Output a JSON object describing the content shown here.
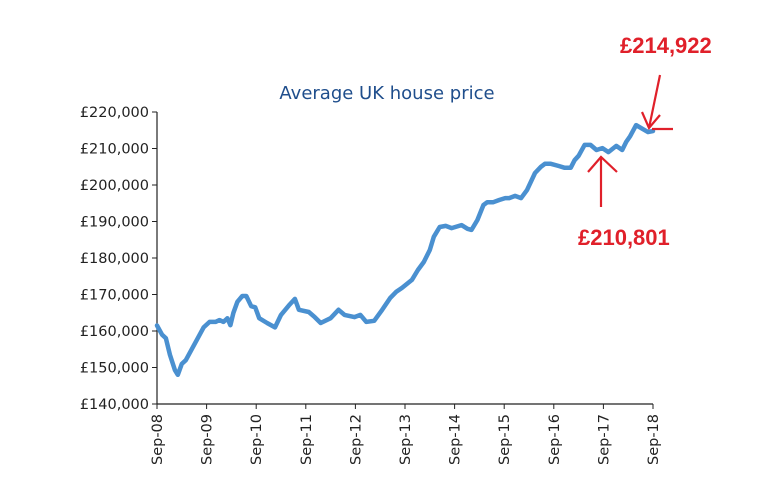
{
  "chart_data": {
    "type": "line",
    "title": "Average UK house price",
    "xlabel": "",
    "ylabel": "",
    "ylim": [
      140000,
      220000
    ],
    "yticks": [
      140000,
      150000,
      160000,
      170000,
      180000,
      190000,
      200000,
      210000,
      220000
    ],
    "ytick_labels": [
      "£140,000",
      "£150,000",
      "£160,000",
      "£170,000",
      "£180,000",
      "£190,000",
      "£200,000",
      "£210,000",
      "£220,000"
    ],
    "xlim": [
      2008.75,
      2018.75
    ],
    "xtick_labels": [
      "Sep-08",
      "Sep-09",
      "Sep-10",
      "Sep-11",
      "Sep-12",
      "Sep-13",
      "Sep-14",
      "Sep-15",
      "Sep-16",
      "Sep-17",
      "Sep-18"
    ],
    "grid": false,
    "series": [
      {
        "name": "Average UK house price",
        "color": "#4a90d0",
        "x": [
          2008.75,
          2008.85,
          2008.93,
          2009.01,
          2009.11,
          2009.17,
          2009.25,
          2009.33,
          2009.45,
          2009.57,
          2009.69,
          2009.81,
          2009.93,
          2010.01,
          2010.09,
          2010.17,
          2010.23,
          2010.29,
          2010.37,
          2010.47,
          2010.55,
          2010.65,
          2010.73,
          2010.81,
          2010.97,
          2011.13,
          2011.25,
          2011.41,
          2011.53,
          2011.61,
          2011.81,
          2011.93,
          2012.05,
          2012.25,
          2012.41,
          2012.53,
          2012.73,
          2012.85,
          2012.97,
          2013.13,
          2013.29,
          2013.45,
          2013.57,
          2013.69,
          2013.89,
          2014.01,
          2014.13,
          2014.25,
          2014.33,
          2014.45,
          2014.57,
          2014.69,
          2014.89,
          2015.01,
          2015.09,
          2015.21,
          2015.33,
          2015.41,
          2015.53,
          2015.65,
          2015.77,
          2015.85,
          2015.97,
          2016.09,
          2016.21,
          2016.37,
          2016.49,
          2016.57,
          2016.69,
          2016.85,
          2016.97,
          2017.09,
          2017.17,
          2017.25,
          2017.37,
          2017.49,
          2017.61,
          2017.73,
          2017.85,
          2018.01,
          2018.13,
          2018.21,
          2018.29
        ],
        "y": [
          161500,
          159000,
          158000,
          153500,
          149300,
          148000,
          151000,
          152000,
          155000,
          158000,
          161000,
          162500,
          162500,
          163000,
          162500,
          163500,
          161600,
          165000,
          168000,
          169600,
          169600,
          166800,
          166500,
          163500,
          162200,
          161000,
          164400,
          167000,
          168800,
          165800,
          165200,
          163800,
          162200,
          163500,
          165800,
          164400,
          163800,
          164400,
          162500,
          162800,
          165800,
          169000,
          170700,
          171800,
          174000,
          176700,
          178900,
          182200,
          185800,
          188500,
          188800,
          188200,
          189000,
          188000,
          187700,
          190400,
          194500,
          195300,
          195300,
          195900,
          196400,
          196400,
          197000,
          196400,
          198600,
          203300,
          205000,
          205800,
          205800,
          205200,
          204700,
          204700,
          206800,
          208000,
          211000,
          211000,
          209600,
          210100,
          209000,
          210700,
          209600,
          211800,
          213400
        ]
      }
    ],
    "series_tail": {
      "x": [
        2018.41,
        2018.65,
        2018.75
      ],
      "y": [
        216400,
        214500,
        214800
      ]
    },
    "annotations": [
      {
        "text": "£214,922",
        "target_x": 2018.6,
        "target_y": 214922
      },
      {
        "text": "£210,801",
        "target_x": 2017.65,
        "target_y": 210801
      }
    ]
  }
}
